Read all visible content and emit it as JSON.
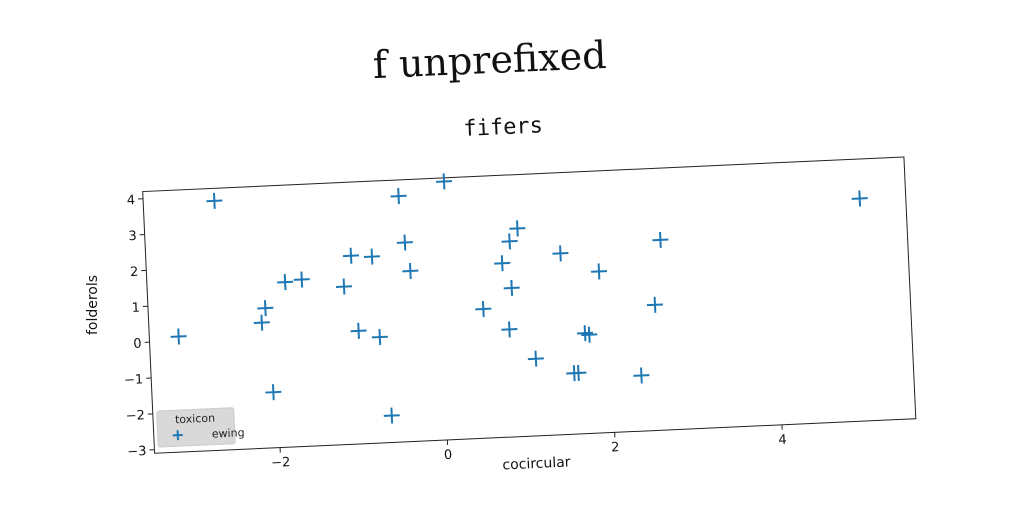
{
  "suptitle": "f unprefixed",
  "chart_data": {
    "type": "scatter",
    "title": "fifers",
    "xlabel": "cocircular",
    "ylabel": "folderols",
    "xlim": [
      -3.5,
      5.6
    ],
    "ylim": [
      -3.1,
      4.2
    ],
    "xticks": [
      -2,
      0,
      2,
      4
    ],
    "yticks": [
      -3,
      -2,
      -1,
      0,
      1,
      2,
      3,
      4
    ],
    "xtick_labels": [
      "−2",
      "0",
      "2",
      "4"
    ],
    "ytick_labels": [
      "−3",
      "−2",
      "−1",
      "0",
      "1",
      "2",
      "3",
      "4"
    ],
    "grid": false,
    "legend": {
      "title": "toxicon",
      "placement": "lower-left",
      "entries": [
        "ewing"
      ]
    },
    "marker": "plus",
    "series": [
      {
        "name": "ewing",
        "color": "#1f77b4",
        "points": [
          [
            -3.15,
            0.12
          ],
          [
            -2.65,
            3.85
          ],
          [
            -2.1,
            0.8
          ],
          [
            -2.15,
            0.4
          ],
          [
            -2.05,
            -1.55
          ],
          [
            -1.85,
            1.5
          ],
          [
            -1.65,
            1.55
          ],
          [
            -1.15,
            1.3
          ],
          [
            -1.05,
            2.15
          ],
          [
            -1.0,
            0.05
          ],
          [
            -0.8,
            2.1
          ],
          [
            -0.75,
            -0.15
          ],
          [
            -0.65,
            -2.35
          ],
          [
            -0.45,
            3.75
          ],
          [
            -0.4,
            2.45
          ],
          [
            -0.35,
            1.65
          ],
          [
            0.1,
            4.1
          ],
          [
            0.5,
            0.5
          ],
          [
            0.75,
            1.75
          ],
          [
            0.8,
            -0.1
          ],
          [
            0.85,
            2.35
          ],
          [
            0.85,
            1.05
          ],
          [
            0.95,
            2.7
          ],
          [
            1.1,
            -0.95
          ],
          [
            1.45,
            1.95
          ],
          [
            1.55,
            -1.4
          ],
          [
            1.6,
            -1.4
          ],
          [
            1.7,
            -0.3
          ],
          [
            1.75,
            -0.35
          ],
          [
            1.9,
            1.4
          ],
          [
            2.35,
            -1.55
          ],
          [
            2.55,
            0.4
          ],
          [
            2.65,
            2.2
          ],
          [
            5.05,
            3.1
          ]
        ]
      }
    ]
  }
}
